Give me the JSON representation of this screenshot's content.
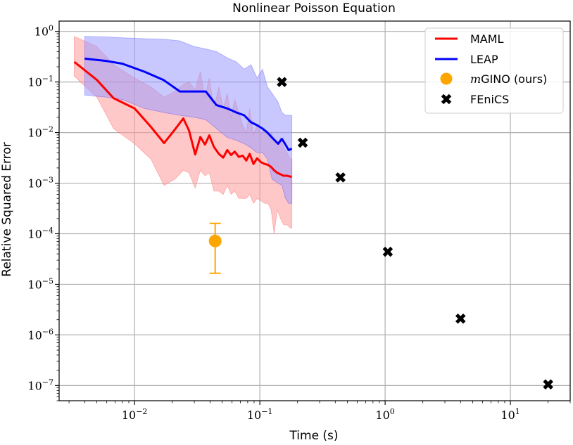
{
  "chart_data": {
    "type": "line",
    "title": "Nonlinear Poisson Equation",
    "xlabel": "Time (s)",
    "ylabel": "Relative Squared Error",
    "xscale": "log",
    "yscale": "log",
    "xlim": [
      0.0025,
      30
    ],
    "ylim": [
      5e-08,
      1.6
    ],
    "grid": true,
    "legend_position": "top-right",
    "x_ticks": [
      {
        "value": 0.01,
        "base": "10",
        "exp": "−2"
      },
      {
        "value": 0.1,
        "base": "10",
        "exp": "−1"
      },
      {
        "value": 1,
        "base": "10",
        "exp": "0"
      },
      {
        "value": 10,
        "base": "10",
        "exp": "1"
      }
    ],
    "y_ticks": [
      {
        "value": 1e-07,
        "base": "10",
        "exp": "−7"
      },
      {
        "value": 1e-06,
        "base": "10",
        "exp": "−6"
      },
      {
        "value": 1e-05,
        "base": "10",
        "exp": "−5"
      },
      {
        "value": 0.0001,
        "base": "10",
        "exp": "−4"
      },
      {
        "value": 0.001,
        "base": "10",
        "exp": "−3"
      },
      {
        "value": 0.01,
        "base": "10",
        "exp": "−2"
      },
      {
        "value": 0.1,
        "base": "10",
        "exp": "−1"
      },
      {
        "value": 1,
        "base": "10",
        "exp": "0"
      }
    ],
    "series": [
      {
        "name": "MAML",
        "kind": "line",
        "color": "#ff0000",
        "band_color": "#ff9a9a",
        "x": [
          0.0033,
          0.005,
          0.0068,
          0.01,
          0.0135,
          0.0172,
          0.021,
          0.0245,
          0.0272,
          0.0305,
          0.0335,
          0.0365,
          0.0395,
          0.043,
          0.047,
          0.051,
          0.055,
          0.059,
          0.063,
          0.068,
          0.073,
          0.078,
          0.083,
          0.089,
          0.095,
          0.102,
          0.109,
          0.116,
          0.123,
          0.13,
          0.138,
          0.146,
          0.155,
          0.165,
          0.175,
          0.18
        ],
        "y": [
          0.25,
          0.11,
          0.048,
          0.03,
          0.013,
          0.0062,
          0.0115,
          0.019,
          0.011,
          0.0037,
          0.0082,
          0.0058,
          0.0088,
          0.0052,
          0.0038,
          0.0032,
          0.0045,
          0.0036,
          0.0042,
          0.0033,
          0.0035,
          0.0028,
          0.0038,
          0.0024,
          0.0031,
          0.0026,
          0.0024,
          0.0023,
          0.0021,
          0.0018,
          0.0016,
          0.0015,
          0.0014,
          0.0014,
          0.00135,
          0.00135
        ],
        "upper": [
          0.8,
          0.5,
          0.22,
          0.12,
          0.08,
          0.05,
          0.065,
          0.09,
          0.1,
          0.07,
          0.16,
          0.05,
          0.12,
          0.03,
          0.08,
          0.03,
          0.06,
          0.02,
          0.045,
          0.025,
          0.014,
          0.01,
          0.03,
          0.009,
          0.014,
          0.009,
          0.012,
          0.008,
          0.01,
          0.007,
          0.006,
          0.008,
          0.005,
          0.004,
          0.003,
          0.003
        ],
        "lower": [
          0.13,
          0.05,
          0.012,
          0.006,
          0.003,
          0.0009,
          0.0012,
          0.0018,
          0.0016,
          0.0008,
          0.0018,
          0.0014,
          0.0016,
          0.0007,
          0.0007,
          0.0006,
          0.0009,
          0.0006,
          0.0007,
          0.0005,
          0.0005,
          0.0005,
          0.0006,
          0.0004,
          0.0005,
          0.00045,
          0.0004,
          0.0004,
          0.0003,
          0.0001,
          0.0003,
          0.0002,
          0.00015,
          0.00015,
          0.00013,
          0.00013
        ]
      },
      {
        "name": "LEAP",
        "kind": "line",
        "color": "#0000ff",
        "band_color": "#9a9aff",
        "x": [
          0.004,
          0.006,
          0.008,
          0.012,
          0.017,
          0.023,
          0.03,
          0.037,
          0.045,
          0.055,
          0.065,
          0.075,
          0.085,
          0.095,
          0.105,
          0.115,
          0.125,
          0.14,
          0.15,
          0.16,
          0.17,
          0.18
        ],
        "y": [
          0.29,
          0.26,
          0.23,
          0.16,
          0.11,
          0.065,
          0.065,
          0.065,
          0.035,
          0.03,
          0.025,
          0.022,
          0.016,
          0.014,
          0.012,
          0.01,
          0.008,
          0.006,
          0.0075,
          0.0058,
          0.0045,
          0.0048
        ],
        "upper": [
          0.8,
          0.78,
          0.75,
          0.72,
          0.7,
          0.65,
          0.5,
          0.45,
          0.4,
          0.3,
          0.25,
          0.18,
          0.22,
          0.12,
          0.18,
          0.08,
          0.06,
          0.04,
          0.025,
          0.022,
          0.022,
          0.022
        ],
        "lower": [
          0.055,
          0.05,
          0.045,
          0.03,
          0.025,
          0.022,
          0.02,
          0.018,
          0.012,
          0.008,
          0.007,
          0.006,
          0.005,
          0.004,
          0.004,
          0.003,
          0.0012,
          0.001,
          0.0009,
          0.0005,
          0.0004,
          0.0004
        ]
      },
      {
        "name": "mGINO (ours)",
        "name_math": "m",
        "name_rest": "GINO (ours)",
        "kind": "errorbar",
        "color": "#ffa500",
        "x": 0.044,
        "y": 7.2e-05,
        "y_low": 1.65e-05,
        "y_high": 0.00016
      },
      {
        "name": "FEniCS",
        "kind": "scatter",
        "marker": "X",
        "color": "#000000",
        "x": [
          0.15,
          0.22,
          0.44,
          1.05,
          4.0,
          20.0
        ],
        "y": [
          0.1,
          0.0063,
          0.0013,
          4.4e-05,
          2.1e-06,
          1.05e-07
        ]
      }
    ]
  }
}
